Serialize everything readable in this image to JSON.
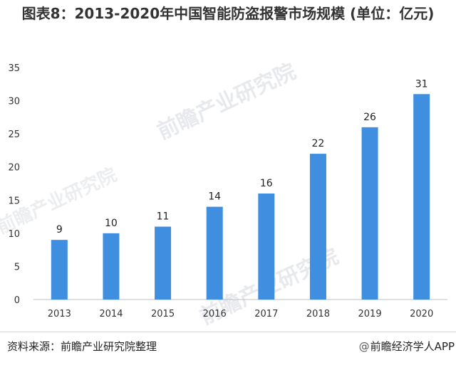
{
  "chart_data": {
    "type": "bar",
    "title": "图表8：2013-2020年中国智能防盗报警市场规模 (单位：亿元)",
    "categories": [
      "2013",
      "2014",
      "2015",
      "2016",
      "2017",
      "2018",
      "2019",
      "2020"
    ],
    "values": [
      9,
      10,
      11,
      14,
      16,
      22,
      26,
      31
    ],
    "yticks": [
      "0",
      "5",
      "10",
      "15",
      "20",
      "25",
      "30",
      "35"
    ],
    "ylim": [
      0,
      35
    ],
    "xlabel": "",
    "ylabel": "",
    "grid": false,
    "legend": "none",
    "data_labels": true,
    "bar_color": "#3f8ee0"
  },
  "footer": {
    "source": "资料来源：前瞻产业研究院整理",
    "brand": "前瞻经济学人APP",
    "brand_icon": "at-sign-icon"
  },
  "watermark": {
    "text": "前瞻产业研究院"
  }
}
